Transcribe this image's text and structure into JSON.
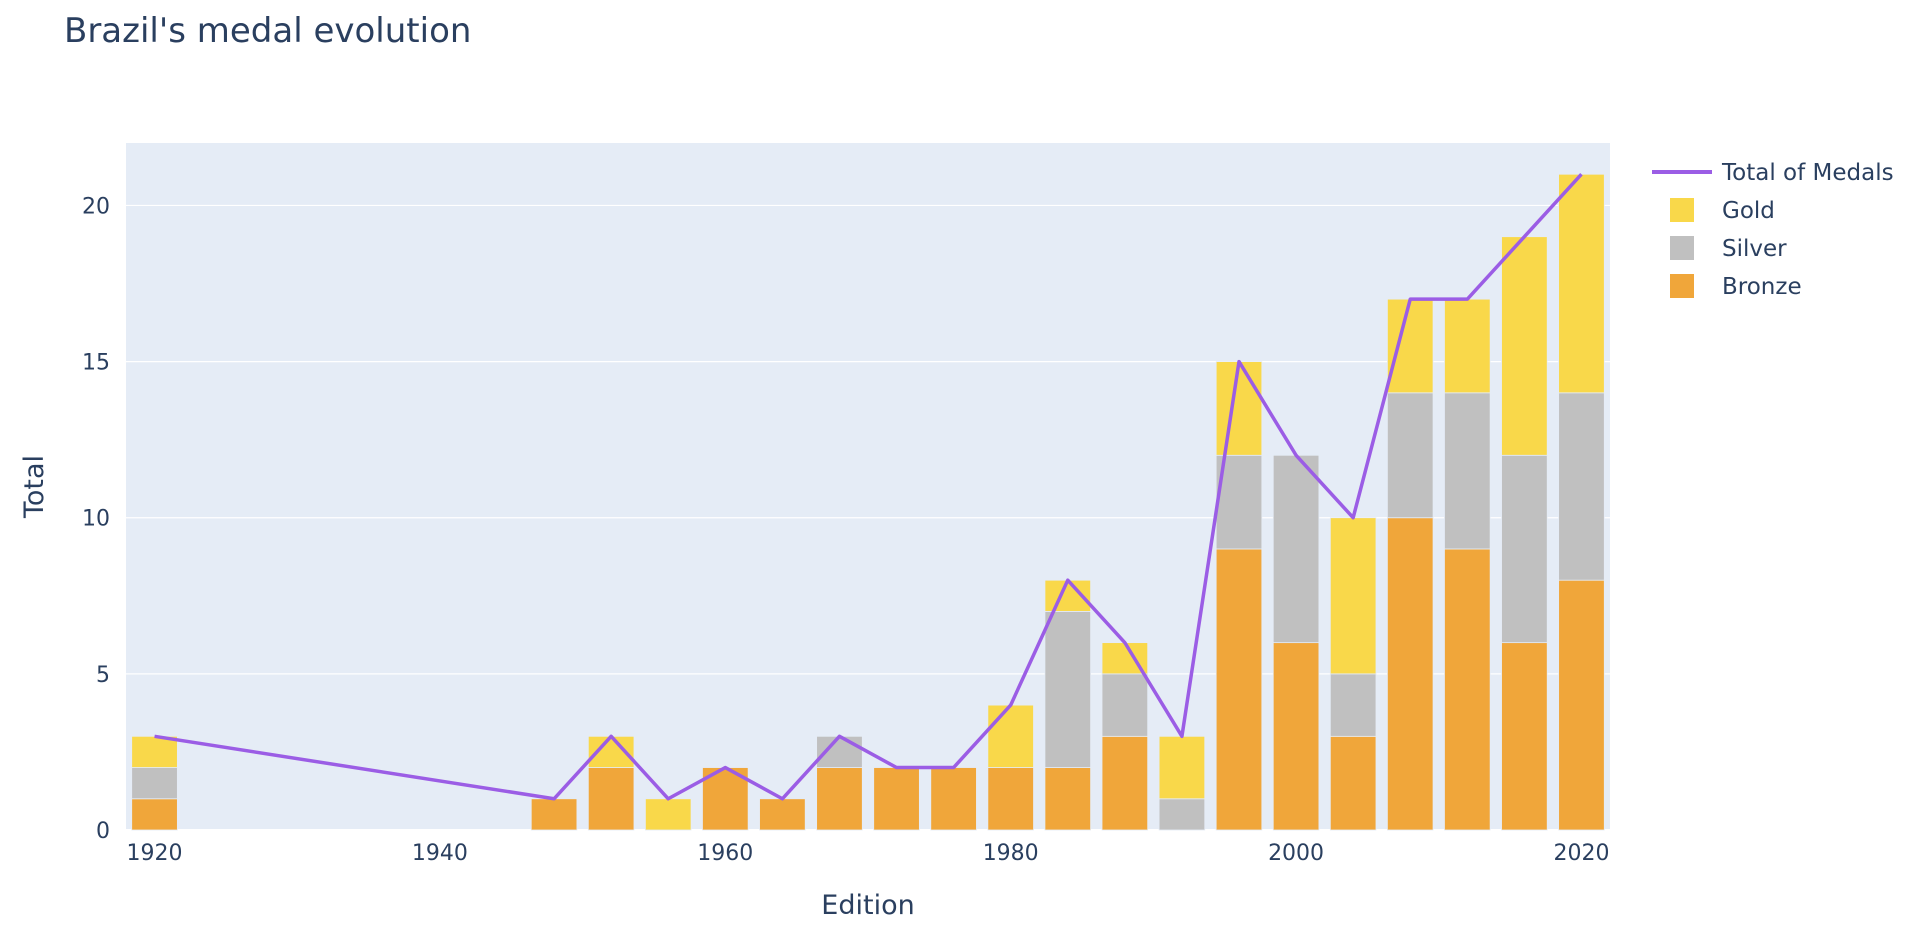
{
  "chart_data": {
    "type": "bar",
    "title": "Brazil's medal evolution",
    "xlabel": "Edition",
    "ylabel": "Total",
    "xlim": [
      1918,
      2022
    ],
    "ylim": [
      0,
      22
    ],
    "x_ticks": [
      1920,
      1940,
      1960,
      1980,
      2000,
      2020
    ],
    "y_ticks": [
      0,
      5,
      10,
      15,
      20
    ],
    "barmode": "stack",
    "legend_position": "top-right",
    "grid": true,
    "colors": {
      "plot_bg": "#e5ecf6",
      "grid": "#ffffff",
      "Gold": "#f9d84a",
      "Silver": "#c0c0c0",
      "Bronze": "#f0a63a",
      "line": "#9b5de5"
    },
    "x": [
      1920,
      1948,
      1952,
      1956,
      1960,
      1964,
      1968,
      1972,
      1976,
      1980,
      1984,
      1988,
      1992,
      1996,
      2000,
      2004,
      2008,
      2012,
      2016,
      2020
    ],
    "series": [
      {
        "name": "Bronze",
        "values": [
          1,
          1,
          2,
          0,
          2,
          1,
          2,
          2,
          2,
          2,
          2,
          3,
          0,
          9,
          6,
          3,
          10,
          9,
          6,
          8
        ]
      },
      {
        "name": "Silver",
        "values": [
          1,
          0,
          0,
          0,
          0,
          0,
          1,
          0,
          0,
          0,
          5,
          2,
          1,
          3,
          6,
          2,
          4,
          5,
          6,
          6
        ]
      },
      {
        "name": "Gold",
        "values": [
          1,
          0,
          1,
          1,
          0,
          0,
          0,
          0,
          0,
          2,
          1,
          1,
          2,
          3,
          0,
          5,
          3,
          3,
          7,
          7
        ]
      }
    ],
    "line_series": {
      "name": "Total of Medals",
      "values": [
        3,
        1,
        3,
        1,
        2,
        1,
        3,
        2,
        2,
        4,
        8,
        6,
        3,
        15,
        12,
        10,
        17,
        17,
        19,
        21
      ]
    },
    "legend": [
      "Total of Medals",
      "Gold",
      "Silver",
      "Bronze"
    ]
  }
}
